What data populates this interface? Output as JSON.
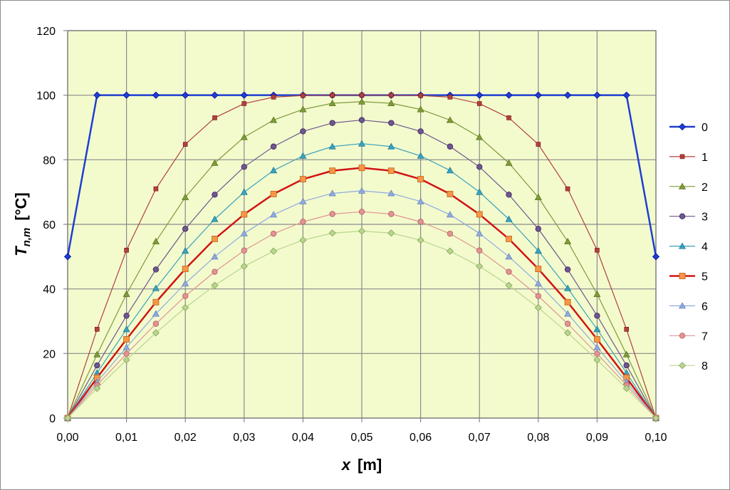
{
  "chart_data": {
    "type": "line",
    "xlabel": {
      "var": "x",
      "unit": "[m]"
    },
    "ylabel": {
      "var": "T",
      "sub": "n,m",
      "unit": "[°C]"
    },
    "xlim": [
      0,
      0.1
    ],
    "ylim": [
      0,
      120
    ],
    "xtick_labels": [
      "0,00",
      "0,01",
      "0,02",
      "0,03",
      "0,04",
      "0,05",
      "0,06",
      "0,07",
      "0,08",
      "0,09",
      "0,10"
    ],
    "ytick_labels": [
      "0",
      "20",
      "40",
      "60",
      "80",
      "100",
      "120"
    ],
    "grid": true,
    "legend": "right",
    "plot_background": "#f3fbcd",
    "x": [
      0,
      0.005,
      0.01,
      0.015,
      0.02,
      0.025,
      0.03,
      0.035,
      0.04,
      0.045,
      0.05,
      0.055,
      0.06,
      0.065,
      0.07,
      0.075,
      0.08,
      0.085,
      0.09,
      0.095,
      0.1
    ],
    "series": [
      {
        "name": "0",
        "color": "#1f3fd0",
        "marker": "diamond",
        "width": 2.5,
        "values": [
          50,
          100,
          100,
          100,
          100,
          100,
          100,
          100,
          100,
          100,
          100,
          100,
          100,
          100,
          100,
          100,
          100,
          100,
          100,
          100,
          50
        ]
      },
      {
        "name": "1",
        "color": "#b0413e",
        "marker": "square",
        "width": 1.2,
        "values": [
          0,
          27.5,
          52,
          71,
          84.8,
          93,
          97.4,
          99.4,
          99.9,
          100,
          100,
          100,
          99.9,
          99.4,
          97.4,
          93,
          84.8,
          71,
          52,
          27.5,
          0
        ]
      },
      {
        "name": "2",
        "color": "#7f9a3c",
        "marker": "triangle",
        "width": 1.2,
        "values": [
          0,
          19.7,
          38.4,
          54.7,
          68.4,
          79,
          87,
          92.3,
          95.6,
          97.5,
          98,
          97.5,
          95.6,
          92.3,
          87,
          79,
          68.4,
          54.7,
          38.4,
          19.7,
          0
        ]
      },
      {
        "name": "3",
        "color": "#6e568f",
        "marker": "circle",
        "width": 1.2,
        "values": [
          0,
          16.3,
          31.7,
          46,
          58.6,
          69.2,
          77.8,
          84.1,
          88.8,
          91.4,
          92.3,
          91.4,
          88.8,
          84.1,
          77.8,
          69.2,
          58.6,
          46,
          31.7,
          16.3,
          0
        ]
      },
      {
        "name": "4",
        "color": "#3ba1bd",
        "marker": "triangle",
        "width": 1.2,
        "values": [
          0,
          14,
          27.5,
          40.2,
          51.8,
          61.6,
          70,
          76.7,
          81.2,
          84.1,
          85,
          84.1,
          81.2,
          76.7,
          70,
          61.6,
          51.8,
          40.2,
          27.5,
          14,
          0
        ]
      },
      {
        "name": "5",
        "color": "#d21414",
        "marker": "square-orange",
        "width": 2.5,
        "values": [
          0,
          12.5,
          24.4,
          35.9,
          46.2,
          55.5,
          63.1,
          69.4,
          74,
          76.6,
          77.5,
          76.6,
          74,
          69.4,
          63.1,
          55.5,
          46.2,
          35.9,
          24.4,
          12.5,
          0
        ]
      },
      {
        "name": "6",
        "color": "#8fa9e0",
        "marker": "triangle",
        "width": 1.2,
        "values": [
          0,
          11.2,
          21.9,
          32.3,
          41.7,
          50,
          57.2,
          63,
          67.1,
          69.6,
          70.4,
          69.6,
          67.1,
          63,
          57.2,
          50,
          41.7,
          32.3,
          21.9,
          11.2,
          0
        ]
      },
      {
        "name": "7",
        "color": "#e29393",
        "marker": "circle",
        "width": 1.2,
        "values": [
          0,
          10.2,
          19.9,
          29.2,
          37.8,
          45.3,
          51.9,
          57.1,
          60.8,
          63.2,
          63.9,
          63.2,
          60.8,
          57.1,
          51.9,
          45.3,
          37.8,
          29.2,
          19.9,
          10.2,
          0
        ]
      },
      {
        "name": "8",
        "color": "#b9d58e",
        "marker": "diamond",
        "width": 1.2,
        "values": [
          0,
          9.2,
          18,
          26.4,
          34.2,
          41.1,
          47,
          51.7,
          55.1,
          57.3,
          57.9,
          57.3,
          55.1,
          51.7,
          47,
          41.1,
          34.2,
          26.4,
          18,
          9.2,
          0
        ]
      }
    ]
  }
}
